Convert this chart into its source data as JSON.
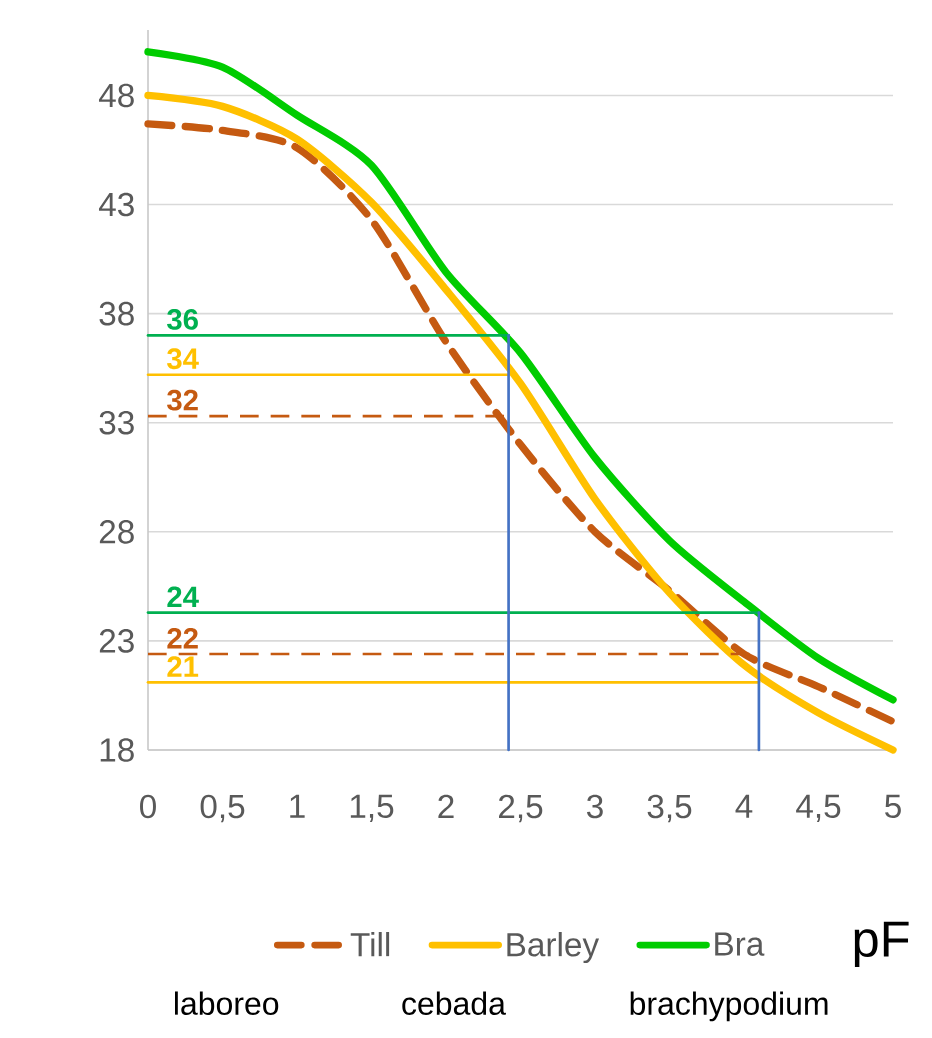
{
  "chart_data": {
    "type": "line",
    "xlabel": "pF",
    "x": [
      0,
      0.5,
      1,
      1.5,
      2,
      2.5,
      3,
      3.5,
      4,
      4.5,
      5
    ],
    "series": [
      {
        "name": "Till",
        "color": "#c55a11",
        "line_style": "dashed",
        "values": [
          46.7,
          46.4,
          45.6,
          42.3,
          36.7,
          32.0,
          28.0,
          25.3,
          22.4,
          20.9,
          19.3
        ]
      },
      {
        "name": "Barley",
        "color": "#ffc000",
        "values": [
          48.0,
          47.5,
          46.0,
          43.1,
          39.1,
          34.8,
          29.5,
          25.2,
          21.9,
          19.7,
          18.0
        ]
      },
      {
        "name": "Bra",
        "color": "#00cc00",
        "values": [
          50.0,
          49.3,
          47.1,
          44.8,
          39.9,
          36.2,
          31.4,
          27.6,
          24.8,
          22.2,
          20.3
        ]
      },
      {
        "color": "#00b050",
        "x": [
          0,
          2.42
        ],
        "values": [
          37.0,
          37.0
        ]
      },
      {
        "color": "#ffc000",
        "x": [
          0,
          2.42
        ],
        "values": [
          35.2,
          35.2
        ]
      },
      {
        "color": "#c55a11",
        "line_style": "dashed",
        "x": [
          0,
          2.42
        ],
        "values": [
          33.3,
          33.3
        ]
      },
      {
        "color": "#00b050",
        "x": [
          0,
          4.1
        ],
        "values": [
          24.3,
          24.3
        ]
      },
      {
        "color": "#c55a11",
        "line_style": "dashed",
        "x": [
          0,
          4.1
        ],
        "values": [
          22.4,
          22.4
        ]
      },
      {
        "color": "#ffc000",
        "x": [
          0,
          4.1
        ],
        "values": [
          21.1,
          21.1
        ]
      },
      {
        "color": "#4472c4",
        "x": [
          2.42,
          2.42
        ],
        "values": [
          18,
          37.0
        ]
      },
      {
        "color": "#4472c4",
        "x": [
          4.1,
          4.1
        ],
        "values": [
          18,
          24.3
        ]
      }
    ],
    "annotations": [
      {
        "text": "36",
        "y": 37.0
      },
      {
        "text": "34",
        "y": 35.2
      },
      {
        "text": "32",
        "y": 33.3
      },
      {
        "text": "24",
        "y": 24.3
      },
      {
        "text": "22",
        "y": 22.4
      },
      {
        "text": "21",
        "y": 21.1
      },
      "laboreo",
      "cebada",
      "brachypodium"
    ],
    "xlim": [
      0,
      5
    ],
    "ylim": [
      18,
      51
    ],
    "xticks": [
      0,
      {
        "value": 0.5,
        "label": "0,5"
      },
      1,
      {
        "value": 1.5,
        "label": "1,5"
      },
      2,
      {
        "value": 2.5,
        "label": "2,5"
      },
      3,
      {
        "value": 3.5,
        "label": "3,5"
      },
      4,
      {
        "value": 4.5,
        "label": "4,5"
      },
      5
    ],
    "yticks": [
      18,
      23,
      28,
      33,
      38,
      43,
      48
    ],
    "grid": "y",
    "legend": "bottom"
  }
}
